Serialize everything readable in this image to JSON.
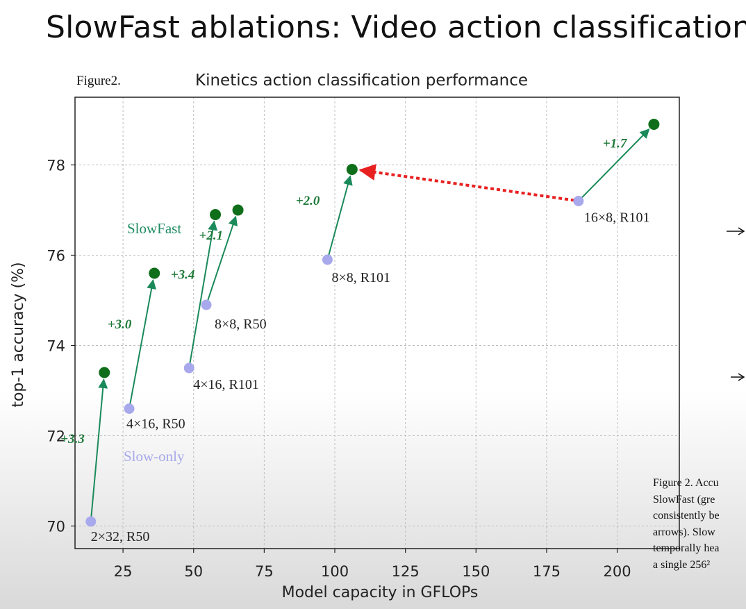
{
  "slide_title": "SlowFast ablations: Video action classification",
  "caption_lines": [
    "Figure 2. Accu",
    "SlowFast (gre",
    "consistently be",
    "arrows). Slow",
    "temporally hea",
    "a single 256² "
  ],
  "colors": {
    "slowfast": "#0f6e1a",
    "slow_only": "#a8a8ec",
    "arrow": "#1a8a5a",
    "highlight_arrow": "#e82020",
    "grid": "#bdbdbd"
  },
  "chart_data": {
    "type": "scatter",
    "figure_label": "Figure2.",
    "title": "Kinetics action classification performance",
    "xlabel": "Model capacity in GFLOPs",
    "ylabel": "top-1 accuracy (%)",
    "xlim": [
      8,
      222
    ],
    "ylim": [
      69.5,
      79.5
    ],
    "xticks": [
      25,
      50,
      75,
      100,
      125,
      150,
      175,
      200
    ],
    "yticks": [
      70,
      72,
      74,
      76,
      78
    ],
    "grid": true,
    "series_labels": {
      "slowfast": "SlowFast",
      "slow_only": "Slow-only"
    },
    "pairs": [
      {
        "label": "2×32, R50",
        "slow": [
          13.6,
          70.1
        ],
        "slowfast": [
          18.4,
          73.4
        ],
        "gain": "+3.3"
      },
      {
        "label": "4×16, R50",
        "slow": [
          27.2,
          72.6
        ],
        "slowfast": [
          36.1,
          75.6
        ],
        "gain": "+3.0"
      },
      {
        "label": "4×16, R101",
        "slow": [
          48.4,
          73.5
        ],
        "slowfast": [
          57.7,
          76.9
        ],
        "gain": "+3.4"
      },
      {
        "label": "8×8, R50",
        "slow": [
          54.5,
          74.9
        ],
        "slowfast": [
          65.7,
          77.0
        ],
        "gain": "+2.1"
      },
      {
        "label": "8×8, R101",
        "slow": [
          97.4,
          75.9
        ],
        "slowfast": [
          106.1,
          77.9
        ],
        "gain": "+2.0"
      },
      {
        "label": "16×8, R101",
        "slow": [
          186.3,
          77.2
        ],
        "slowfast": [
          213.0,
          78.9
        ],
        "gain": "+1.7"
      }
    ],
    "highlight_arrow": {
      "from": [
        186.3,
        77.2
      ],
      "to": [
        106.1,
        77.9
      ]
    }
  }
}
